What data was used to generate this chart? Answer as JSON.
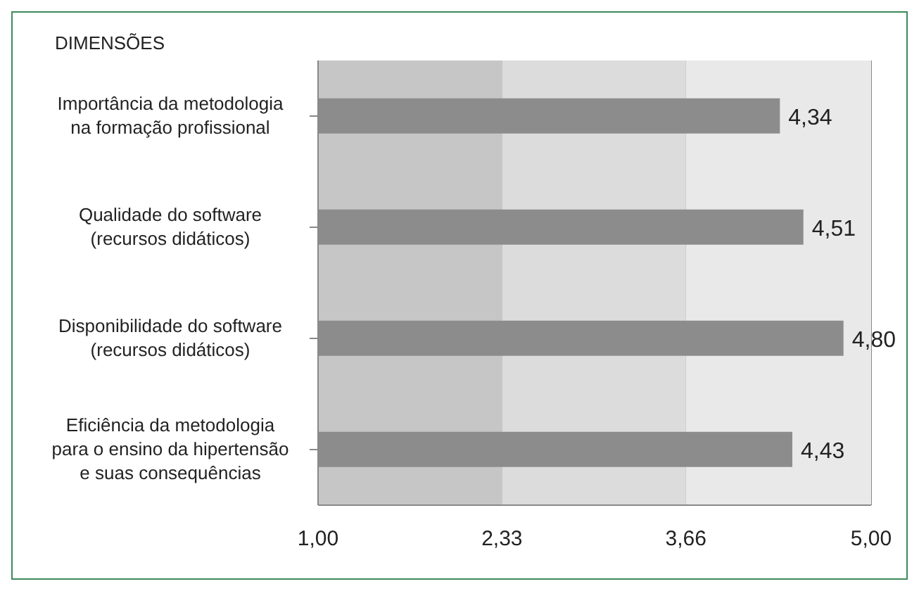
{
  "chart_data": {
    "type": "bar",
    "orientation": "horizontal",
    "ylabel": "DIMENSÕES",
    "categories": [
      "Importância da metodologia na formação profissional",
      "Qualidade do software (recursos didáticos)",
      "Disponibilidade do software (recursos didáticos)",
      "Eficiência da metodologia para o ensino da hipertensão e suas consequências"
    ],
    "values": [
      4.34,
      4.51,
      4.8,
      4.43
    ],
    "value_labels": [
      "4,34",
      "4,51",
      "4,80",
      "4,43"
    ],
    "color": "#8c8c8c",
    "xlim": [
      1,
      5
    ],
    "xticks": [
      {
        "value": 1,
        "label": "1,00"
      },
      {
        "value": 2.33,
        "label": "2,33"
      },
      {
        "value": 3.66,
        "label": "3,66"
      },
      {
        "value": 5,
        "label": "5,00"
      }
    ],
    "bands": [
      {
        "axis": "x",
        "from": 1,
        "to": 2.33,
        "color": "#c6c6c6"
      },
      {
        "axis": "x",
        "from": 2.33,
        "to": 3.66,
        "color": "#dcdcdc"
      },
      {
        "axis": "x",
        "from": 3.66,
        "to": 5,
        "color": "#e9e9e9"
      }
    ],
    "grid": "x"
  }
}
